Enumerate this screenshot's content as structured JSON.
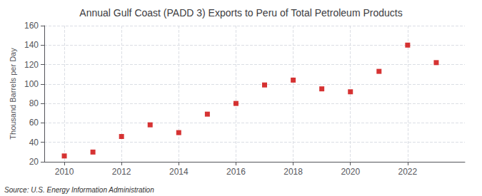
{
  "chart_data": {
    "type": "scatter",
    "title": "Annual Gulf Coast (PADD 3) Exports to Peru of Total Petroleum Products",
    "ylabel": "Thousand Barrels per Day",
    "source": "Source: U.S. Energy Information Administration",
    "x": [
      2010,
      2011,
      2012,
      2013,
      2014,
      2015,
      2016,
      2017,
      2018,
      2019,
      2020,
      2021,
      2022,
      2023
    ],
    "values": [
      26,
      30,
      46,
      58,
      50,
      69,
      80,
      99,
      104,
      95,
      92,
      113,
      140,
      122
    ],
    "color": "#cc0000",
    "marker": "square",
    "xlim": [
      2009.3,
      2024.0
    ],
    "xticks": [
      2010,
      2012,
      2014,
      2016,
      2018,
      2020,
      2022
    ],
    "ylim": [
      20,
      160
    ],
    "yticks": [
      20,
      40,
      60,
      80,
      100,
      120,
      140,
      160
    ],
    "grid": true
  }
}
